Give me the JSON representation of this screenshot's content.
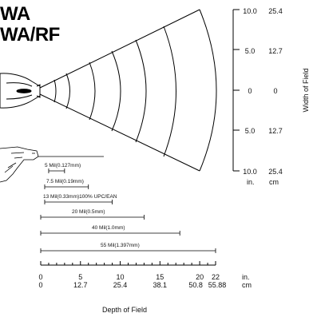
{
  "title_lines": [
    "WA",
    "WA/RF"
  ],
  "width_scale": {
    "in_ticks": [
      "10.0",
      "5.0",
      "0",
      "5.0",
      "10.0"
    ],
    "cm_ticks": [
      "25.4",
      "12.7",
      "0",
      "12.7",
      "25.4"
    ],
    "unit_in": "in.",
    "unit_cm": "cm",
    "label": "Width of Field"
  },
  "depth_scale": {
    "in_ticks": [
      "0",
      "5",
      "10",
      "15",
      "20",
      "22"
    ],
    "cm_ticks": [
      "0",
      "12.7",
      "25.4",
      "38.1",
      "50.8",
      "55.88"
    ],
    "unit_in": "in.",
    "unit_cm": "cm",
    "label": "Depth of Field"
  },
  "ranges": [
    {
      "label": "5 Mil(0.127mm)",
      "start_in": 1,
      "end_in": 3
    },
    {
      "label": "7.5 Mil(0.19mm)",
      "start_in": 0.5,
      "end_in": 6
    },
    {
      "label": "13 Mil(0.33mm)100% UPC/EAN",
      "start_in": 0.5,
      "end_in": 9
    },
    {
      "label": "20 Mil(0.5mm)",
      "start_in": 0,
      "end_in": 13
    },
    {
      "label": "40 Mil(1.0mm)",
      "start_in": 0,
      "end_in": 17.5
    },
    {
      "label": "55 Mil(1.397mm)",
      "start_in": 0,
      "end_in": 22
    }
  ]
}
